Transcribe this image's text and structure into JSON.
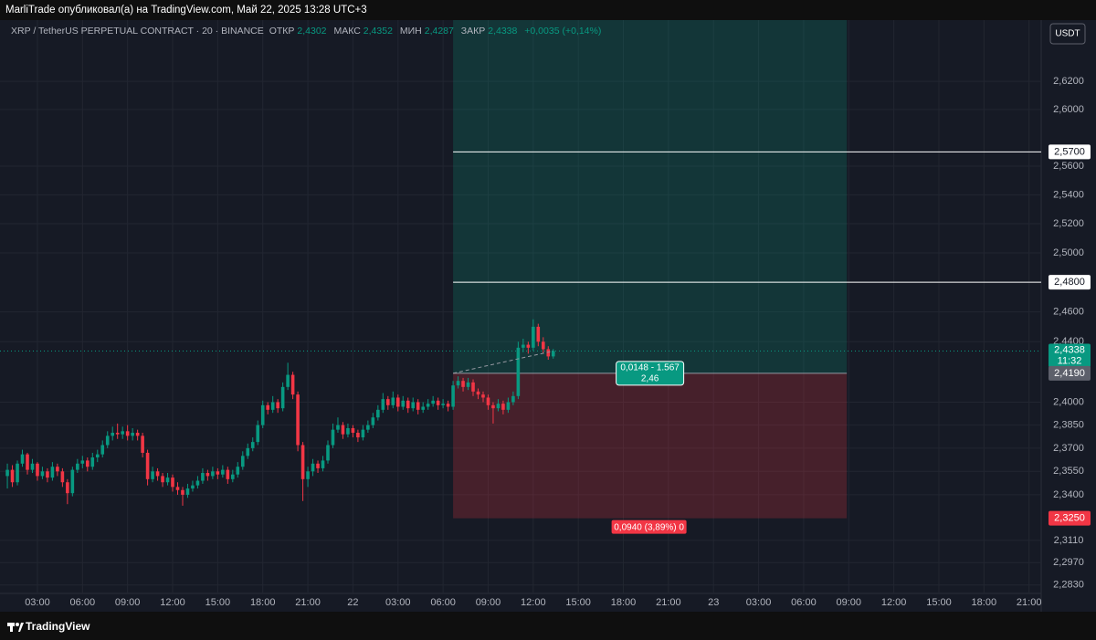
{
  "header": {
    "publisher": "MarliTrade опубликовал(а) на TradingView.com, Май 22, 2025 13:28 UTC+3"
  },
  "footer": {
    "brand": "TradingView"
  },
  "currency_button": "USDT",
  "chart_data": {
    "type": "candlestick",
    "symbol": "XRP / TetherUS PERPETUAL CONTRACT · 20 · BINANCE",
    "legend": {
      "open_label": "ОТКР",
      "open": "2,4302",
      "high_label": "МАКС",
      "high": "2,4352",
      "low_label": "МИН",
      "low": "2,4287",
      "close_label": "ЗАКР",
      "close": "2,4338",
      "change": "+0,0035 (+0,14%)"
    },
    "up_color": "#089981",
    "down_color": "#f23645",
    "log_scale": true,
    "grid": true,
    "xlim": [
      0.51,
      69.81
    ],
    "ylim": [
      2.2777,
      2.6643
    ],
    "xticks": [
      {
        "value": 3,
        "label": "03:00"
      },
      {
        "value": 6,
        "label": "06:00"
      },
      {
        "value": 9,
        "label": "09:00"
      },
      {
        "value": 12,
        "label": "12:00"
      },
      {
        "value": 15,
        "label": "15:00"
      },
      {
        "value": 18,
        "label": "18:00"
      },
      {
        "value": 21,
        "label": "21:00"
      },
      {
        "value": 24,
        "label": "22"
      },
      {
        "value": 27,
        "label": "03:00"
      },
      {
        "value": 30,
        "label": "06:00"
      },
      {
        "value": 33,
        "label": "09:00"
      },
      {
        "value": 36,
        "label": "12:00"
      },
      {
        "value": 39,
        "label": "15:00"
      },
      {
        "value": 42,
        "label": "18:00"
      },
      {
        "value": 45,
        "label": "21:00"
      },
      {
        "value": 48,
        "label": "23"
      },
      {
        "value": 51,
        "label": "03:00"
      },
      {
        "value": 54,
        "label": "06:00"
      },
      {
        "value": 57,
        "label": "09:00"
      },
      {
        "value": 60,
        "label": "12:00"
      },
      {
        "value": 63,
        "label": "15:00"
      },
      {
        "value": 66,
        "label": "18:00"
      },
      {
        "value": 69,
        "label": "21:00"
      }
    ],
    "yticks": [
      {
        "value": 2.62,
        "label": "2,6200"
      },
      {
        "value": 2.6,
        "label": "2,6000"
      },
      {
        "value": 2.56,
        "label": "2,5600"
      },
      {
        "value": 2.54,
        "label": "2,5400"
      },
      {
        "value": 2.52,
        "label": "2,5200"
      },
      {
        "value": 2.5,
        "label": "2,5000"
      },
      {
        "value": 2.46,
        "label": "2,4600"
      },
      {
        "value": 2.44,
        "label": "2,4400"
      },
      {
        "value": 2.4,
        "label": "2,4000"
      },
      {
        "value": 2.385,
        "label": "2,3850"
      },
      {
        "value": 2.37,
        "label": "2,3700"
      },
      {
        "value": 2.355,
        "label": "2,3550"
      },
      {
        "value": 2.34,
        "label": "2,3400"
      },
      {
        "value": 2.311,
        "label": "2,3110"
      },
      {
        "value": 2.297,
        "label": "2,2970"
      },
      {
        "value": 2.283,
        "label": "2,2830"
      }
    ],
    "x": [
      1,
      1.333,
      1.667,
      2,
      2.333,
      2.667,
      3,
      3.333,
      3.667,
      4,
      4.333,
      4.667,
      5,
      5.333,
      5.667,
      6,
      6.333,
      6.667,
      7,
      7.333,
      7.667,
      8,
      8.333,
      8.667,
      9,
      9.333,
      9.667,
      10,
      10.333,
      10.667,
      11,
      11.333,
      11.667,
      12,
      12.333,
      12.667,
      13,
      13.333,
      13.667,
      14,
      14.333,
      14.667,
      15,
      15.333,
      15.667,
      16,
      16.333,
      16.667,
      17,
      17.333,
      17.667,
      18,
      18.333,
      18.667,
      19,
      19.333,
      19.667,
      20,
      20.333,
      20.667,
      21,
      21.333,
      21.667,
      22,
      22.333,
      22.667,
      23,
      23.333,
      23.667,
      24,
      24.333,
      24.667,
      25,
      25.333,
      25.667,
      26,
      26.333,
      26.667,
      27,
      27.333,
      27.667,
      28,
      28.333,
      28.667,
      29,
      29.333,
      29.667,
      30,
      30.333,
      30.667,
      31,
      31.333,
      31.667,
      32,
      32.333,
      32.667,
      33,
      33.333,
      33.667,
      34,
      34.333,
      34.667,
      35,
      35.333,
      35.667,
      36,
      36.333,
      36.667,
      37,
      37.333
    ],
    "open": [
      2.352,
      2.356,
      2.348,
      2.36,
      2.366,
      2.356,
      2.36,
      2.352,
      2.355,
      2.351,
      2.358,
      2.355,
      2.348,
      2.341,
      2.356,
      2.36,
      2.362,
      2.358,
      2.364,
      2.366,
      2.372,
      2.378,
      2.38,
      2.379,
      2.381,
      2.378,
      2.38,
      2.378,
      2.367,
      2.35,
      2.355,
      2.352,
      2.348,
      2.351,
      2.345,
      2.343,
      2.34,
      2.344,
      2.346,
      2.349,
      2.354,
      2.352,
      2.355,
      2.353,
      2.356,
      2.35,
      2.353,
      2.358,
      2.365,
      2.37,
      2.374,
      2.385,
      2.398,
      2.395,
      2.4,
      2.396,
      2.41,
      2.418,
      2.405,
      2.372,
      2.35,
      2.355,
      2.36,
      2.357,
      2.362,
      2.372,
      2.382,
      2.385,
      2.379,
      2.383,
      2.38,
      2.377,
      2.382,
      2.385,
      2.39,
      2.395,
      2.402,
      2.398,
      2.403,
      2.397,
      2.401,
      2.396,
      2.4,
      2.395,
      2.397,
      2.399,
      2.401,
      2.398,
      2.399,
      2.397,
      2.411,
      2.414,
      2.41,
      2.413,
      2.407,
      2.405,
      2.403,
      2.398,
      2.396,
      2.399,
      2.395,
      2.4,
      2.404,
      2.436,
      2.438,
      2.436,
      2.45,
      2.44,
      2.435,
      2.4302
    ],
    "high": [
      2.36,
      2.359,
      2.362,
      2.369,
      2.367,
      2.363,
      2.361,
      2.358,
      2.357,
      2.361,
      2.36,
      2.357,
      2.35,
      2.358,
      2.363,
      2.365,
      2.364,
      2.367,
      2.369,
      2.375,
      2.381,
      2.384,
      2.386,
      2.384,
      2.385,
      2.383,
      2.382,
      2.38,
      2.369,
      2.358,
      2.357,
      2.354,
      2.354,
      2.353,
      2.348,
      2.345,
      2.347,
      2.349,
      2.352,
      2.357,
      2.356,
      2.358,
      2.357,
      2.359,
      2.358,
      2.356,
      2.361,
      2.368,
      2.373,
      2.377,
      2.388,
      2.401,
      2.4,
      2.404,
      2.402,
      2.413,
      2.426,
      2.42,
      2.407,
      2.374,
      2.358,
      2.363,
      2.362,
      2.365,
      2.375,
      2.386,
      2.39,
      2.387,
      2.386,
      2.385,
      2.382,
      2.385,
      2.388,
      2.393,
      2.398,
      2.406,
      2.404,
      2.407,
      2.405,
      2.404,
      2.403,
      2.403,
      2.402,
      2.4,
      2.402,
      2.404,
      2.403,
      2.402,
      2.401,
      2.414,
      2.417,
      2.416,
      2.416,
      2.415,
      2.409,
      2.407,
      2.405,
      2.4,
      2.402,
      2.401,
      2.403,
      2.407,
      2.44,
      2.442,
      2.44,
      2.455,
      2.452,
      2.443,
      2.437,
      2.4352
    ],
    "low": [
      2.344,
      2.345,
      2.346,
      2.358,
      2.353,
      2.354,
      2.349,
      2.35,
      2.348,
      2.349,
      2.352,
      2.345,
      2.334,
      2.339,
      2.354,
      2.357,
      2.355,
      2.356,
      2.361,
      2.364,
      2.37,
      2.375,
      2.376,
      2.376,
      2.375,
      2.375,
      2.375,
      2.364,
      2.346,
      2.348,
      2.349,
      2.345,
      2.346,
      2.342,
      2.34,
      2.333,
      2.338,
      2.342,
      2.344,
      2.347,
      2.349,
      2.35,
      2.35,
      2.351,
      2.347,
      2.348,
      2.351,
      2.356,
      2.363,
      2.368,
      2.372,
      2.383,
      2.392,
      2.393,
      2.393,
      2.394,
      2.408,
      2.402,
      2.368,
      2.336,
      2.345,
      2.352,
      2.354,
      2.355,
      2.36,
      2.37,
      2.38,
      2.376,
      2.377,
      2.377,
      2.374,
      2.375,
      2.38,
      2.383,
      2.388,
      2.393,
      2.395,
      2.396,
      2.394,
      2.395,
      2.393,
      2.394,
      2.392,
      2.393,
      2.395,
      2.397,
      2.395,
      2.396,
      2.394,
      2.395,
      2.409,
      2.407,
      2.408,
      2.404,
      2.402,
      2.4,
      2.395,
      2.386,
      2.394,
      2.392,
      2.393,
      2.398,
      2.402,
      2.433,
      2.432,
      2.434,
      2.437,
      2.432,
      2.428,
      2.4287
    ],
    "close": [
      2.356,
      2.348,
      2.36,
      2.366,
      2.356,
      2.36,
      2.352,
      2.355,
      2.351,
      2.358,
      2.355,
      2.348,
      2.341,
      2.356,
      2.36,
      2.362,
      2.358,
      2.364,
      2.366,
      2.372,
      2.378,
      2.38,
      2.379,
      2.381,
      2.378,
      2.38,
      2.378,
      2.367,
      2.35,
      2.355,
      2.352,
      2.348,
      2.351,
      2.345,
      2.343,
      2.34,
      2.344,
      2.346,
      2.349,
      2.354,
      2.352,
      2.355,
      2.353,
      2.356,
      2.35,
      2.353,
      2.358,
      2.365,
      2.37,
      2.374,
      2.385,
      2.398,
      2.395,
      2.4,
      2.396,
      2.41,
      2.418,
      2.405,
      2.372,
      2.35,
      2.355,
      2.36,
      2.357,
      2.362,
      2.372,
      2.382,
      2.385,
      2.379,
      2.383,
      2.38,
      2.377,
      2.382,
      2.385,
      2.39,
      2.395,
      2.402,
      2.398,
      2.403,
      2.397,
      2.401,
      2.396,
      2.4,
      2.395,
      2.397,
      2.399,
      2.401,
      2.398,
      2.399,
      2.397,
      2.411,
      2.414,
      2.41,
      2.413,
      2.407,
      2.405,
      2.403,
      2.398,
      2.396,
      2.399,
      2.395,
      2.4,
      2.404,
      2.436,
      2.438,
      2.436,
      2.45,
      2.44,
      2.435,
      2.4302,
      2.4338
    ],
    "current_price": {
      "value": 2.4338,
      "label": "2,4338",
      "countdown": "11:32"
    },
    "hlines": [
      {
        "value": 2.57,
        "label": "2,5700"
      },
      {
        "value": 2.48,
        "label": "2,4800"
      }
    ],
    "position": {
      "x": [
        30.667,
        56.87
      ],
      "entry": {
        "value": 2.419,
        "label": "2,4190"
      },
      "stop": {
        "value": 2.325,
        "label": "2,3250"
      },
      "target_text": "0,0148 - 1.567",
      "ratio_text": "2,46",
      "stop_text": "0,0940 (3,89%) 0"
    }
  }
}
